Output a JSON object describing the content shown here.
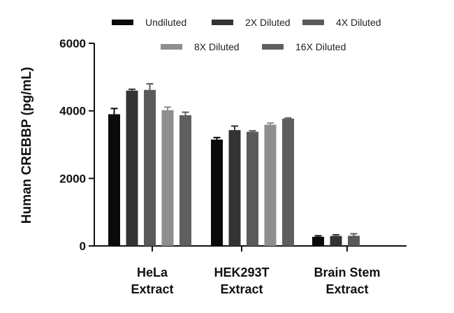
{
  "chart_data": {
    "type": "bar",
    "ylabel": "Human CREBBP (pg/mL)",
    "ylim": [
      0,
      6000
    ],
    "yticks": [
      0,
      2000,
      4000,
      6000
    ],
    "categories": [
      [
        "HeLa",
        "Extract"
      ],
      [
        "HEK293T",
        "Extract"
      ],
      [
        "Brain Stem",
        "Extract"
      ]
    ],
    "series": [
      {
        "name": "Undiluted",
        "color": "#0a0a0a",
        "values": [
          3900,
          3150,
          270
        ],
        "errors": [
          170,
          60,
          30
        ]
      },
      {
        "name": "2X Diluted",
        "color": "#333333",
        "values": [
          4600,
          3430,
          295
        ],
        "errors": [
          40,
          120,
          35
        ]
      },
      {
        "name": "4X Diluted",
        "color": "#5a5a5a",
        "values": [
          4620,
          3380,
          300
        ],
        "errors": [
          180,
          30,
          60
        ]
      },
      {
        "name": "8X Diluted",
        "color": "#8e8e8e",
        "values": [
          4020,
          3590,
          null
        ],
        "errors": [
          90,
          50,
          null
        ]
      },
      {
        "name": "16X Diluted",
        "color": "#5f5f5f",
        "values": [
          3870,
          3770,
          null
        ],
        "errors": [
          90,
          20,
          null
        ]
      }
    ],
    "grid": false,
    "legend_position": "top"
  }
}
